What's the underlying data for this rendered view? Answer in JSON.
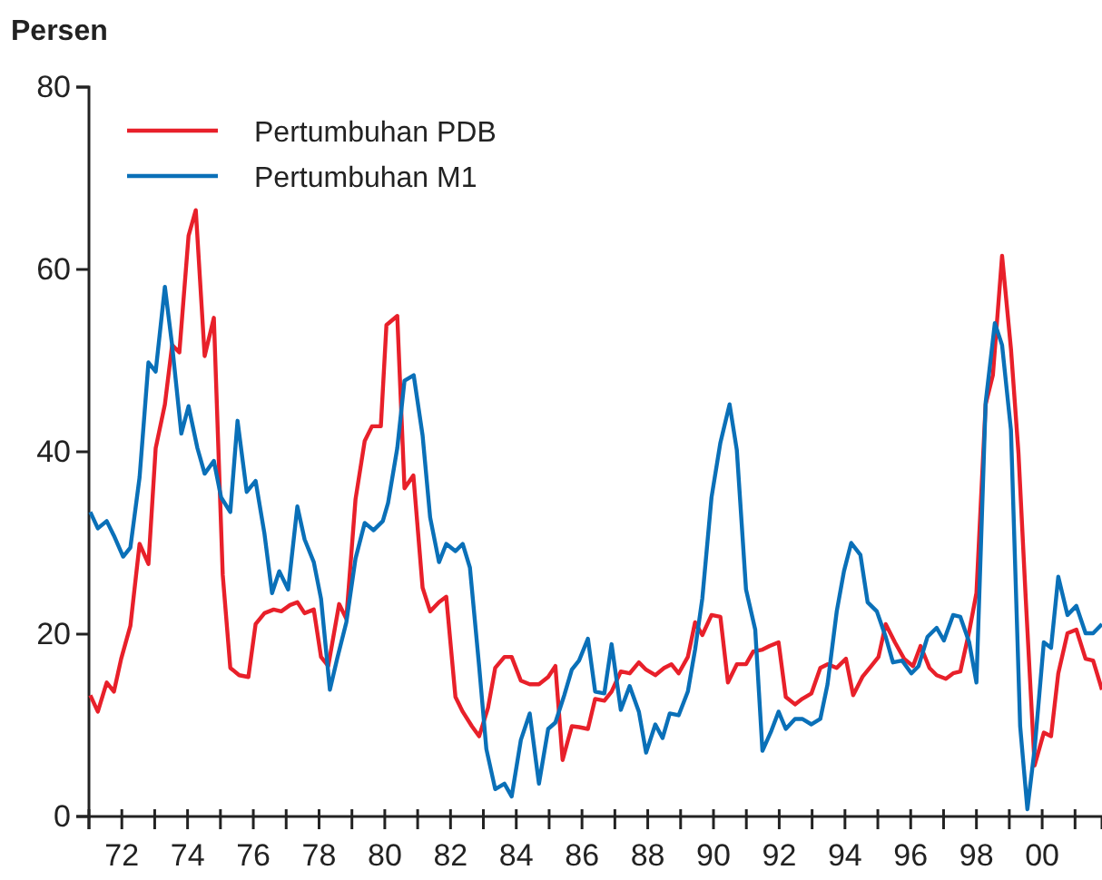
{
  "chart_data": {
    "type": "line",
    "ylabel": "Persen",
    "xlim": [
      1971,
      2001.82
    ],
    "xticks": [
      {
        "value": 1971,
        "label": null
      },
      {
        "value": 1972,
        "label": "72"
      },
      {
        "value": 1973,
        "label": null
      },
      {
        "value": 1974,
        "label": "74"
      },
      {
        "value": 1975,
        "label": null
      },
      {
        "value": 1976,
        "label": "76"
      },
      {
        "value": 1977,
        "label": null
      },
      {
        "value": 1978,
        "label": "78"
      },
      {
        "value": 1979,
        "label": null
      },
      {
        "value": 1980,
        "label": "80"
      },
      {
        "value": 1981,
        "label": null
      },
      {
        "value": 1982,
        "label": "82"
      },
      {
        "value": 1983,
        "label": null
      },
      {
        "value": 1984,
        "label": "84"
      },
      {
        "value": 1985,
        "label": null
      },
      {
        "value": 1986,
        "label": "86"
      },
      {
        "value": 1987,
        "label": null
      },
      {
        "value": 1988,
        "label": "88"
      },
      {
        "value": 1989,
        "label": null
      },
      {
        "value": 1990,
        "label": "90"
      },
      {
        "value": 1991,
        "label": null
      },
      {
        "value": 1992,
        "label": "92"
      },
      {
        "value": 1993,
        "label": null
      },
      {
        "value": 1994,
        "label": "94"
      },
      {
        "value": 1995,
        "label": null
      },
      {
        "value": 1996,
        "label": "96"
      },
      {
        "value": 1997,
        "label": null
      },
      {
        "value": 1998,
        "label": "98"
      },
      {
        "value": 1999,
        "label": null
      },
      {
        "value": 2000,
        "label": "00"
      },
      {
        "value": 2001,
        "label": null
      }
    ],
    "ylim": [
      0,
      80
    ],
    "yticks": [
      0,
      20,
      40,
      60,
      80
    ],
    "grid": false,
    "legend": "top left",
    "marker": "none",
    "line_style": "solid",
    "series": [
      {
        "name": "Pertumbuhan PDB",
        "color": "#e8202a",
        "x": [
          1971.04,
          1971.27,
          1971.54,
          1971.76,
          1971.98,
          1972.26,
          1972.54,
          1972.81,
          1973.03,
          1973.31,
          1973.53,
          1973.75,
          1974.03,
          1974.25,
          1974.52,
          1974.8,
          1975.07,
          1975.3,
          1975.57,
          1975.85,
          1976.07,
          1976.34,
          1976.62,
          1976.85,
          1977.12,
          1977.34,
          1977.56,
          1977.84,
          1978.06,
          1978.28,
          1978.61,
          1978.83,
          1979.11,
          1979.39,
          1979.61,
          1979.88,
          1980.05,
          1980.38,
          1980.6,
          1980.87,
          1981.15,
          1981.38,
          1981.65,
          1981.87,
          1982.15,
          1982.37,
          1982.65,
          1982.87,
          1983.14,
          1983.36,
          1983.64,
          1983.86,
          1984.14,
          1984.41,
          1984.69,
          1984.97,
          1985.19,
          1985.41,
          1985.69,
          1985.91,
          1986.18,
          1986.4,
          1986.68,
          1986.9,
          1987.18,
          1987.45,
          1987.73,
          1987.95,
          1988.23,
          1988.5,
          1988.72,
          1988.94,
          1989.22,
          1989.44,
          1989.66,
          1989.94,
          1990.21,
          1990.44,
          1990.71,
          1990.99,
          1991.21,
          1991.49,
          1991.71,
          1991.98,
          1992.2,
          1992.48,
          1992.7,
          1992.98,
          1993.25,
          1993.47,
          1993.75,
          1994.03,
          1994.25,
          1994.53,
          1994.8,
          1995.02,
          1995.24,
          1995.52,
          1995.8,
          1996.07,
          1996.3,
          1996.57,
          1996.79,
          1997.07,
          1997.29,
          1997.51,
          1997.78,
          1998,
          1998.28,
          1998.5,
          1998.78,
          1999.05,
          1999.28,
          1999.5,
          1999.77,
          2000.05,
          2000.27,
          2000.49,
          2000.77,
          2001.04,
          2001.32,
          2001.55,
          2001.82
        ],
        "values": [
          13.3,
          11.5,
          14.7,
          13.7,
          17.3,
          20.9,
          29.9,
          27.7,
          40.4,
          45.2,
          51.7,
          50.9,
          63.7,
          66.5,
          50.5,
          54.7,
          26.5,
          16.3,
          15.5,
          15.3,
          21.1,
          22.3,
          22.7,
          22.5,
          23.2,
          23.5,
          22.3,
          22.7,
          17.5,
          16.5,
          23.3,
          21.7,
          34.8,
          41.2,
          42.8,
          42.8,
          53.9,
          54.9,
          36,
          37.4,
          25.1,
          22.5,
          23.5,
          24.1,
          13.1,
          11.5,
          9.9,
          8.8,
          11.9,
          16.3,
          17.5,
          17.5,
          14.9,
          14.5,
          14.5,
          15.3,
          16.5,
          6.2,
          9.9,
          9.8,
          9.6,
          12.9,
          12.7,
          13.7,
          15.9,
          15.7,
          16.9,
          16.1,
          15.5,
          16.3,
          16.7,
          15.7,
          17.5,
          21.3,
          19.9,
          22.1,
          21.9,
          14.7,
          16.7,
          16.7,
          18.1,
          18.3,
          18.7,
          19.1,
          13.1,
          12.3,
          12.9,
          13.5,
          16.3,
          16.7,
          16.3,
          17.3,
          13.3,
          15.3,
          16.5,
          17.5,
          21.1,
          19.1,
          17.3,
          16.5,
          18.7,
          16.3,
          15.5,
          15.1,
          15.7,
          15.9,
          20.3,
          24.5,
          45.2,
          48.4,
          61.5,
          51.3,
          39.8,
          23.9,
          5.6,
          9.2,
          8.8,
          15.7,
          20.1,
          20.5,
          17.3,
          17.1,
          13.9
        ]
      },
      {
        "name": "Pertumbuhan M1",
        "color": "#0a70b8",
        "x": [
          1971.04,
          1971.27,
          1971.54,
          1971.76,
          1972.04,
          1972.26,
          1972.54,
          1972.81,
          1973.03,
          1973.31,
          1973.53,
          1973.81,
          1974.03,
          1974.3,
          1974.52,
          1974.8,
          1975.02,
          1975.3,
          1975.52,
          1975.8,
          1976.07,
          1976.34,
          1976.57,
          1976.79,
          1977.06,
          1977.34,
          1977.56,
          1977.84,
          1978.06,
          1978.33,
          1978.55,
          1978.83,
          1979.11,
          1979.39,
          1979.66,
          1979.94,
          1980.1,
          1980.38,
          1980.6,
          1980.88,
          1981.15,
          1981.38,
          1981.65,
          1981.87,
          1982.15,
          1982.37,
          1982.59,
          1982.87,
          1983.09,
          1983.36,
          1983.64,
          1983.86,
          1984.14,
          1984.41,
          1984.69,
          1984.97,
          1985.19,
          1985.46,
          1985.69,
          1985.91,
          1986.18,
          1986.4,
          1986.68,
          1986.9,
          1987.18,
          1987.45,
          1987.73,
          1987.95,
          1988.23,
          1988.45,
          1988.67,
          1988.94,
          1989.22,
          1989.44,
          1989.66,
          1989.94,
          1990.21,
          1990.49,
          1990.71,
          1990.99,
          1991.27,
          1991.49,
          1991.76,
          1991.98,
          1992.2,
          1992.48,
          1992.7,
          1992.98,
          1993.25,
          1993.47,
          1993.75,
          1993.97,
          1994.19,
          1994.47,
          1994.69,
          1994.97,
          1995.24,
          1995.46,
          1995.74,
          1996.02,
          1996.24,
          1996.51,
          1996.79,
          1997.01,
          1997.29,
          1997.51,
          1997.78,
          1998,
          1998.28,
          1998.56,
          1998.78,
          1999.05,
          1999.33,
          1999.55,
          1999.77,
          2000.05,
          2000.27,
          2000.49,
          2000.77,
          2001.04,
          2001.32,
          2001.55,
          2001.82
        ],
        "values": [
          33.4,
          31.6,
          32.4,
          30.8,
          28.5,
          29.5,
          37.2,
          49.8,
          48.8,
          58.1,
          51.7,
          42,
          45,
          40.4,
          37.6,
          39,
          35,
          33.4,
          43.4,
          35.6,
          36.8,
          31,
          24.5,
          26.9,
          24.9,
          34,
          30.4,
          27.9,
          23.9,
          13.9,
          17.3,
          21.3,
          28.3,
          32.2,
          31.4,
          32.4,
          34.4,
          40.4,
          47.8,
          48.4,
          41.8,
          32.8,
          27.9,
          29.9,
          29.1,
          29.9,
          27.3,
          16.5,
          7.4,
          3,
          3.6,
          2.2,
          8.4,
          11.3,
          3.6,
          9.6,
          10.3,
          13.3,
          16.1,
          17.1,
          19.5,
          13.7,
          13.5,
          18.9,
          11.7,
          14.3,
          11.5,
          7,
          10.1,
          8.6,
          11.3,
          11.1,
          13.7,
          18.3,
          23.9,
          35,
          41,
          45.2,
          40.2,
          24.9,
          20.5,
          7.2,
          9.4,
          11.5,
          9.6,
          10.7,
          10.7,
          10.1,
          10.7,
          14.5,
          22.5,
          26.9,
          30,
          28.7,
          23.5,
          22.5,
          19.7,
          16.9,
          17.1,
          15.7,
          16.5,
          19.7,
          20.7,
          19.3,
          22.1,
          21.9,
          19.1,
          14.7,
          45.4,
          54.1,
          51.7,
          42.4,
          9.9,
          0.8,
          7.4,
          19.1,
          18.5,
          26.3,
          22.1,
          23.1,
          20.1,
          20.1,
          21.1
        ]
      }
    ]
  }
}
